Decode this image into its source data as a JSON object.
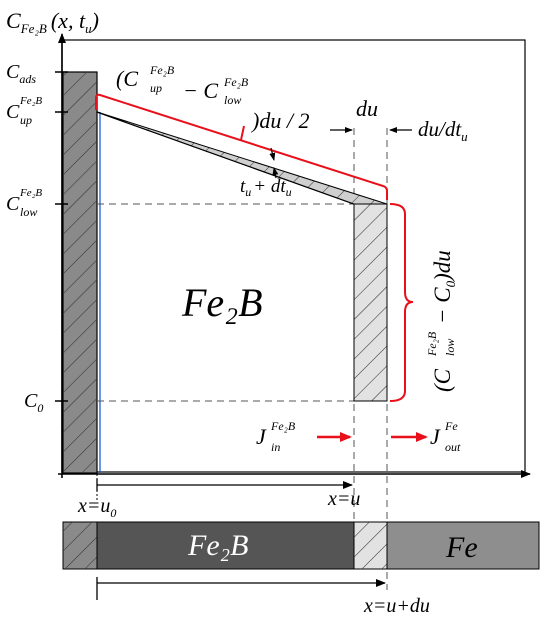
{
  "axes": {
    "y_axis": {
      "label_main": "C",
      "label_sub": "Fe₂B",
      "label_args": "(x, t",
      "label_args_sub": "u",
      "label_close": ")"
    },
    "y_ticks": {
      "c_ads": {
        "main": "C",
        "sub": "ads"
      },
      "c_up": {
        "main": "C",
        "sub": "up",
        "sup": "Fe₂B"
      },
      "c_low": {
        "main": "C",
        "sub": "low",
        "sup": "Fe₂B"
      },
      "c_0": {
        "main": "C",
        "sub": "0"
      }
    },
    "x_ticks": {
      "x_u0": {
        "main": "x=u",
        "sub": "0"
      },
      "x_u": {
        "main": "x=u"
      },
      "x_udu": {
        "main": "x=u+du"
      }
    }
  },
  "annotations": {
    "top_bracket": {
      "open": "(C",
      "up_sub": "up",
      "up_sup": "Fe₂B",
      "minus": "− C",
      "low_sub": "low",
      "low_sup": "Fe₂B",
      "close": ")du / 2"
    },
    "du_label": "du",
    "velocity_label": "du/dt",
    "velocity_sub": "u",
    "time_label": "t",
    "time_sub": "u",
    "time_plus": "+ dt",
    "time_plus_sub": "u",
    "side_bracket": {
      "open": "(C",
      "low_sub": "low",
      "low_sup": "Fe₂B",
      "rest": "− C",
      "zero_sub": "0",
      "close": ")du"
    },
    "flux_in": {
      "main": "J",
      "sub": "in",
      "sup": "Fe₂B"
    },
    "flux_out": {
      "main": "J",
      "sub": "out",
      "sup": "Fe"
    }
  },
  "regions": {
    "phase_label": "Fe₂B",
    "bar_phase_label": "Fe₂B",
    "bar_substrate_label": "Fe"
  },
  "colors": {
    "bracket": "#e8101a",
    "flux_arrow": "#e8101a",
    "surface_line": "#1f5fd6",
    "substrate_layer": "#8a8a8a",
    "fe2b_bar": "#555555",
    "hatched_bg": "#e2e2e2"
  }
}
